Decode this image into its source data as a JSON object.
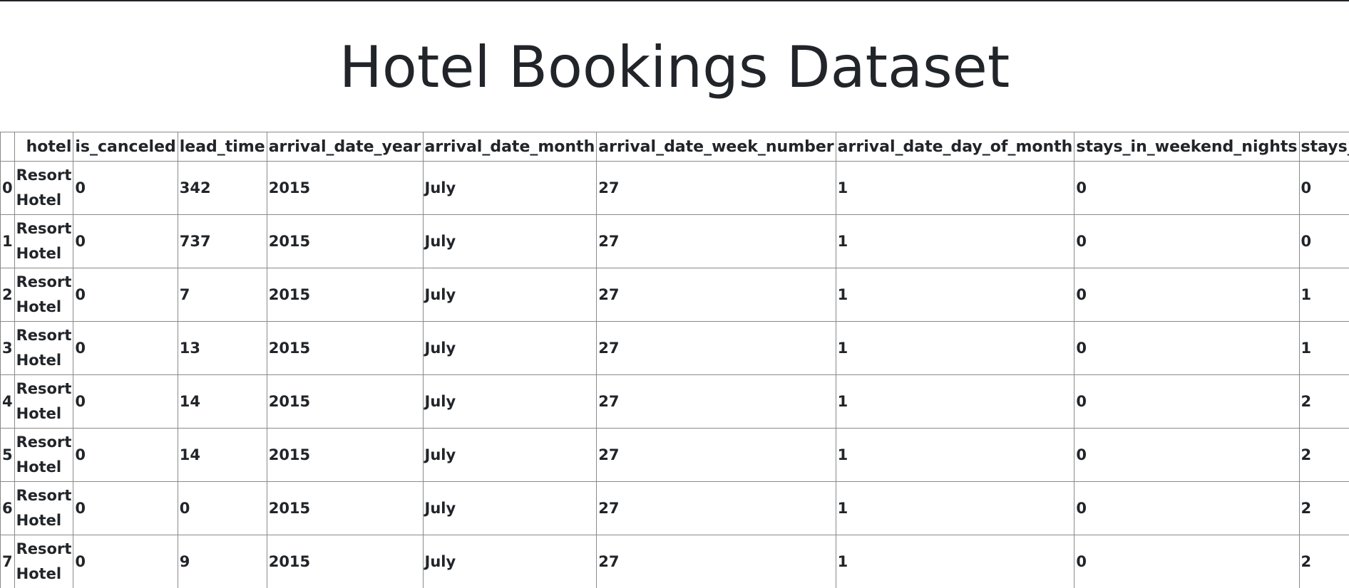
{
  "page": {
    "title": "Hotel Bookings Dataset"
  },
  "table": {
    "columns": [
      "",
      "hotel",
      "is_canceled",
      "lead_time",
      "arrival_date_year",
      "arrival_date_month",
      "arrival_date_week_number",
      "arrival_date_day_of_month",
      "stays_in_weekend_nights",
      "stays_in_week_nights"
    ],
    "rows": [
      [
        "0",
        "Resort Hotel",
        "0",
        "342",
        "2015",
        "July",
        "27",
        "1",
        "0",
        "0"
      ],
      [
        "1",
        "Resort Hotel",
        "0",
        "737",
        "2015",
        "July",
        "27",
        "1",
        "0",
        "0"
      ],
      [
        "2",
        "Resort Hotel",
        "0",
        "7",
        "2015",
        "July",
        "27",
        "1",
        "0",
        "1"
      ],
      [
        "3",
        "Resort Hotel",
        "0",
        "13",
        "2015",
        "July",
        "27",
        "1",
        "0",
        "1"
      ],
      [
        "4",
        "Resort Hotel",
        "0",
        "14",
        "2015",
        "July",
        "27",
        "1",
        "0",
        "2"
      ],
      [
        "5",
        "Resort Hotel",
        "0",
        "14",
        "2015",
        "July",
        "27",
        "1",
        "0",
        "2"
      ],
      [
        "6",
        "Resort Hotel",
        "0",
        "0",
        "2015",
        "July",
        "27",
        "1",
        "0",
        "2"
      ],
      [
        "7",
        "Resort Hotel",
        "0",
        "9",
        "2015",
        "July",
        "27",
        "1",
        "0",
        "2"
      ]
    ]
  }
}
